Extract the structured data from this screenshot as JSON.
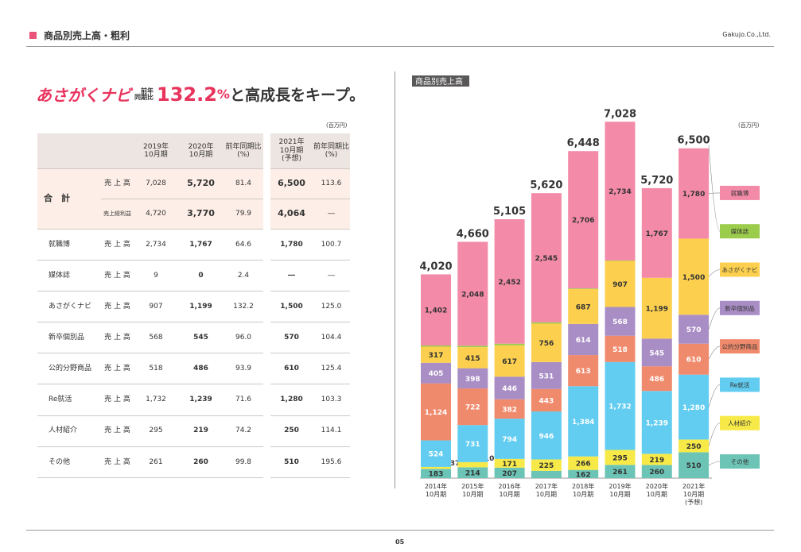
{
  "header": {
    "title": "商品別売上高・粗利",
    "company": "Gakujo.Co.,Ltd.",
    "page": "05"
  },
  "headline": {
    "brand": "あさがくナビ",
    "label": [
      "前年",
      "同期比"
    ],
    "number": "132.2",
    "unit": "%",
    "tail": "と高成長をキープ。"
  },
  "table": {
    "unit": "(百万円)",
    "headers": [
      [
        "2019年",
        "10月期"
      ],
      [
        "2020年",
        "10月期"
      ],
      [
        "前年同期比",
        "(%)"
      ],
      [
        "2021年",
        "10月期",
        "(予想)"
      ],
      [
        "前年同期比",
        "(%)"
      ]
    ],
    "total": {
      "name": "合　計",
      "rows": [
        {
          "metric": "売 上 高",
          "cells": [
            "7,028",
            "5,720",
            "81.4",
            "6,500",
            "113.6"
          ]
        },
        {
          "metric": "売上総利益",
          "cells": [
            "4,720",
            "3,770",
            "79.9",
            "4,064",
            "―"
          ]
        }
      ]
    },
    "rows": [
      {
        "name": "就職博",
        "metric": "売 上 高",
        "cells": [
          "2,734",
          "1,767",
          "64.6",
          "1,780",
          "100.7"
        ]
      },
      {
        "name": "媒体誌",
        "metric": "売 上 高",
        "cells": [
          "9",
          "0",
          "2.4",
          "―",
          "―"
        ]
      },
      {
        "name": "あさがくナビ",
        "metric": "売 上 高",
        "cells": [
          "907",
          "1,199",
          "132.2",
          "1,500",
          "125.0"
        ]
      },
      {
        "name": "新卒個別品",
        "metric": "売 上 高",
        "cells": [
          "568",
          "545",
          "96.0",
          "570",
          "104.4"
        ]
      },
      {
        "name": "公的分野商品",
        "metric": "売 上 高",
        "cells": [
          "518",
          "486",
          "93.9",
          "610",
          "125.4"
        ]
      },
      {
        "name": "Re就活",
        "metric": "売 上 高",
        "cells": [
          "1,732",
          "1,239",
          "71.6",
          "1,280",
          "103.3"
        ]
      },
      {
        "name": "人材紹介",
        "metric": "売 上 高",
        "cells": [
          "295",
          "219",
          "74.2",
          "250",
          "114.1"
        ]
      },
      {
        "name": "その他",
        "metric": "売 上 高",
        "cells": [
          "261",
          "260",
          "99.8",
          "510",
          "195.6"
        ]
      }
    ]
  },
  "chart_data": {
    "type": "stacked-bar",
    "title": "商品別売上高",
    "unit": "(百万円)",
    "categories": [
      [
        "2014年",
        "10月期"
      ],
      [
        "2015年",
        "10月期"
      ],
      [
        "2016年",
        "10月期"
      ],
      [
        "2017年",
        "10月期"
      ],
      [
        "2018年",
        "10月期"
      ],
      [
        "2019年",
        "10月期"
      ],
      [
        "2020年",
        "10月期"
      ],
      [
        "2021年",
        "10月期",
        "(予想)"
      ]
    ],
    "totals": [
      4020,
      4660,
      5105,
      5620,
      6448,
      7028,
      5720,
      6500
    ],
    "total_labels": [
      "4,020",
      "4,660",
      "5,105",
      "5,620",
      "6,448",
      "7,028",
      "5,720",
      "6,500"
    ],
    "series": [
      {
        "name": "その他",
        "color": "#6cc4b6",
        "values": [
          183,
          214,
          207,
          143,
          162,
          261,
          260,
          510
        ]
      },
      {
        "name": "人材紹介",
        "color": "#f7ea48",
        "values": [
          37,
          101,
          171,
          225,
          266,
          295,
          219,
          250
        ]
      },
      {
        "name": "Re就活",
        "color": "#62cdf0",
        "values": [
          524,
          731,
          794,
          946,
          1384,
          1732,
          1239,
          1280
        ],
        "value_labels": [
          "524",
          "731",
          "794",
          "946",
          "1,384",
          "1,732",
          "1,239",
          "1,280"
        ]
      },
      {
        "name": "公的分野商品",
        "color": "#f08a6c",
        "values": [
          1124,
          722,
          382,
          443,
          613,
          518,
          486,
          610
        ],
        "value_labels": [
          "1,124",
          "722",
          "382",
          "443",
          "613",
          "518",
          "486",
          "610"
        ]
      },
      {
        "name": "新卒個別品",
        "color": "#a98dc5",
        "values": [
          405,
          398,
          446,
          531,
          614,
          568,
          545,
          570
        ]
      },
      {
        "name": "あさがくナビ",
        "color": "#fcd04e",
        "values": [
          317,
          415,
          617,
          756,
          687,
          907,
          1199,
          1500
        ],
        "value_labels": [
          "317",
          "415",
          "617",
          "756",
          "687",
          "907",
          "1,199",
          "1,500"
        ]
      },
      {
        "name": "媒体誌",
        "color": "#9ccc4c",
        "values": [
          24,
          28,
          33,
          27,
          13,
          9,
          0,
          null
        ]
      },
      {
        "name": "就職博",
        "color": "#f28aa8",
        "values": [
          1402,
          2048,
          2452,
          2545,
          2706,
          2734,
          1767,
          1780
        ],
        "value_labels": [
          "1,402",
          "2,048",
          "2,452",
          "2,545",
          "2,706",
          "2,734",
          "1,767",
          "1,780"
        ]
      }
    ]
  }
}
